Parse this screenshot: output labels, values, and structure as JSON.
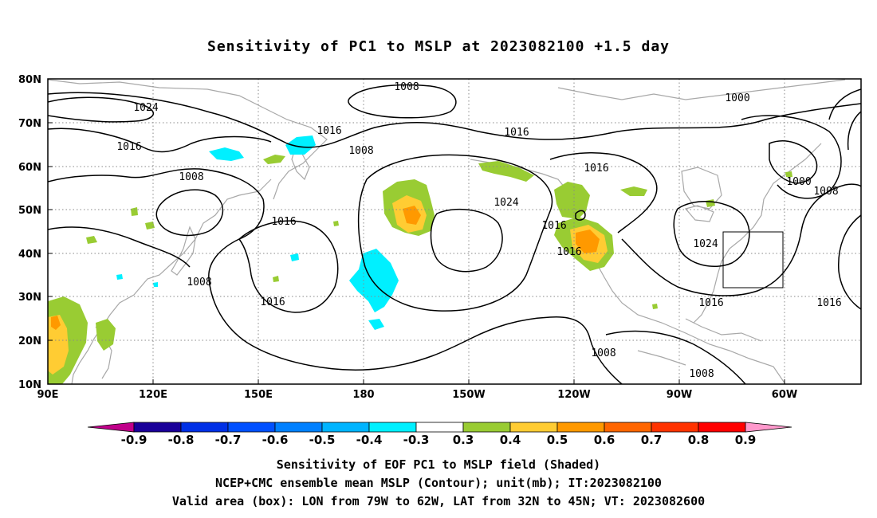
{
  "title": "Sensitivity of PC1 to MSLP at 2023082100 +1.5 day",
  "lat_labels": [
    "80N",
    "70N",
    "60N",
    "50N",
    "40N",
    "30N",
    "20N",
    "10N"
  ],
  "lon_labels": [
    "90E",
    "120E",
    "150E",
    "180",
    "150W",
    "120W",
    "90W",
    "60W"
  ],
  "contour_labels": [
    "1008",
    "1024",
    "1016",
    "1016",
    "1008",
    "1008",
    "1016",
    "1016",
    "1024",
    "1016",
    "1000",
    "1000",
    "1008",
    "1016",
    "1016",
    "1024",
    "1008",
    "1016",
    "1016",
    "1008",
    "1008",
    "1016"
  ],
  "colorbar": {
    "labels": [
      "-0.9",
      "-0.8",
      "-0.7",
      "-0.6",
      "-0.5",
      "-0.4",
      "-0.3",
      "0.3",
      "0.4",
      "0.5",
      "0.6",
      "0.7",
      "0.8",
      "0.9"
    ],
    "colors": [
      "#1a0099",
      "#0030e6",
      "#0050ff",
      "#0080ff",
      "#00b4ff",
      "#00f0ff",
      "#ffffff",
      "#99cc33",
      "#ffcc33",
      "#ff9900",
      "#ff6600",
      "#ff3300",
      "#ff0000"
    ],
    "low_extension_color": "#c0008a",
    "high_extension_color": "#ff99cc"
  },
  "captions": {
    "line1": "Sensitivity of EOF PC1 to MSLP field (Shaded)",
    "line2": "NCEP+CMC ensemble mean MSLP (Contour); unit(mb); IT:2023082100",
    "line3": "Valid area (box): LON from 79W to 62W, LAT from 32N to 45N; VT: 2023082600"
  }
}
